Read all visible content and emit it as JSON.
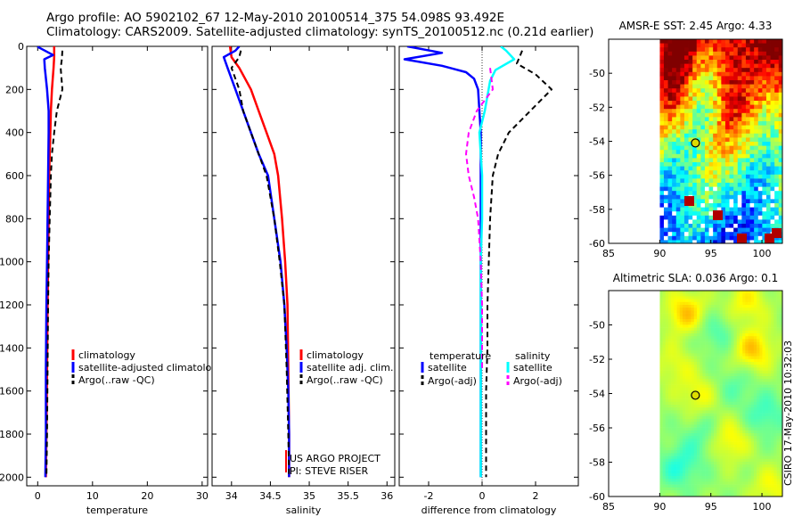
{
  "header": {
    "line1": "Argo profile: AO 5902102_67 12-May-2010 20100514_375 54.098S 93.492E",
    "line2": "Climatology: CARS2009. Satellite-adjusted climatology: synTS_20100512.nc (0.21d earlier)"
  },
  "credit": "CSIRO 17-May-2010 10:32:03",
  "colors": {
    "red": "#ff0000",
    "blue": "#0000ff",
    "black": "#000000",
    "cyan": "#00ffff",
    "magenta": "#ff00ff"
  },
  "chart_data": [
    {
      "id": "temperature",
      "type": "line",
      "title": "",
      "xlabel": "temperature",
      "ylabel": "",
      "xlim": [
        -2,
        31
      ],
      "ylim": [
        2040,
        0
      ],
      "xticks": [
        0,
        10,
        20,
        30
      ],
      "yticks": [
        0,
        200,
        400,
        600,
        800,
        1000,
        1200,
        1400,
        1600,
        1800,
        2000
      ],
      "legend": {
        "position": "lower-right",
        "entries": [
          "climatology",
          "satellite-adjusted climatology",
          "Argo(..raw -QC)"
        ]
      },
      "series": [
        {
          "name": "climatology",
          "color": "red",
          "dash": "solid",
          "width": 2.5,
          "x": [
            3.0,
            3.0,
            2.9,
            2.6,
            2.4,
            2.3,
            2.2,
            2.1,
            2.0,
            1.9,
            1.8,
            1.7,
            1.6,
            1.5
          ],
          "y": [
            0,
            50,
            100,
            200,
            300,
            400,
            500,
            600,
            800,
            1000,
            1200,
            1500,
            1800,
            2000
          ]
        },
        {
          "name": "satellite-adjusted climatology",
          "color": "blue",
          "dash": "solid",
          "width": 2.5,
          "x": [
            0.0,
            0.2,
            2.8,
            1.2,
            1.3,
            1.7,
            2.0,
            2.0,
            1.9,
            1.8,
            1.7,
            1.6,
            1.5,
            1.5,
            1.4
          ],
          "y": [
            0,
            5,
            40,
            60,
            100,
            200,
            300,
            400,
            600,
            800,
            1000,
            1200,
            1500,
            1800,
            2000
          ]
        },
        {
          "name": "Argo(..raw -QC)",
          "color": "black",
          "dash": "dash",
          "width": 2,
          "x": [
            4.5,
            4.4,
            4.2,
            4.5,
            3.5,
            3.0,
            2.6,
            2.4,
            2.2,
            2.0,
            1.9,
            1.8,
            1.7,
            1.6
          ],
          "y": [
            20,
            60,
            100,
            200,
            300,
            400,
            500,
            600,
            800,
            1000,
            1200,
            1500,
            1800,
            2000
          ]
        }
      ]
    },
    {
      "id": "salinity",
      "type": "line",
      "title": "",
      "xlabel": "salinity",
      "ylabel": "",
      "xlim": [
        33.75,
        36.1
      ],
      "ylim": [
        2040,
        0
      ],
      "xticks": [
        34,
        34.5,
        35,
        35.5,
        36
      ],
      "yticks": [
        0,
        200,
        400,
        600,
        800,
        1000,
        1200,
        1400,
        1600,
        1800,
        2000
      ],
      "legend": {
        "position": "lower-right",
        "entries": [
          "climatology",
          "satellite adj. clim.",
          "Argo(..raw -QC)"
        ]
      },
      "annotations": [
        "US ARGO PROJECT",
        "PI: STEVE RISER"
      ],
      "series": [
        {
          "name": "climatology",
          "color": "red",
          "dash": "solid",
          "width": 2.5,
          "x": [
            33.98,
            34.0,
            34.1,
            34.25,
            34.35,
            34.45,
            34.55,
            34.6,
            34.65,
            34.69,
            34.72,
            34.73,
            34.74,
            34.74
          ],
          "y": [
            0,
            50,
            100,
            200,
            300,
            400,
            500,
            600,
            800,
            1000,
            1200,
            1500,
            1800,
            2000
          ]
        },
        {
          "name": "satellite adj. clim.",
          "color": "blue",
          "dash": "solid",
          "width": 2.5,
          "x": [
            34.1,
            34.05,
            33.9,
            33.95,
            34.05,
            34.15,
            34.25,
            34.35,
            34.47,
            34.55,
            34.63,
            34.68,
            34.71,
            34.73,
            34.74,
            34.74
          ],
          "y": [
            0,
            20,
            50,
            100,
            200,
            300,
            400,
            500,
            600,
            800,
            1000,
            1200,
            1400,
            1600,
            1800,
            2000
          ]
        },
        {
          "name": "Argo(..raw -QC)",
          "color": "black",
          "dash": "dash",
          "width": 2,
          "x": [
            34.12,
            34.1,
            34.0,
            34.1,
            34.15,
            34.25,
            34.35,
            34.45,
            34.55,
            34.62,
            34.68,
            34.71,
            34.73,
            34.74
          ],
          "y": [
            20,
            50,
            100,
            200,
            300,
            400,
            500,
            600,
            800,
            1000,
            1200,
            1500,
            1800,
            2000
          ]
        }
      ]
    },
    {
      "id": "difference",
      "type": "line",
      "title": "",
      "xlabel": "difference from climatology",
      "ylabel": "",
      "xlim": [
        -3.1,
        3.6
      ],
      "ylim": [
        2040,
        0
      ],
      "xticks": [
        -2,
        0,
        2
      ],
      "yticks": [
        0,
        200,
        400,
        600,
        800,
        1000,
        1200,
        1400,
        1600,
        1800,
        2000
      ],
      "zero_line": true,
      "legend": {
        "position": "lower-center",
        "groups": [
          {
            "title": "temperature",
            "entries": [
              "satellite",
              "Argo(-adj)"
            ]
          },
          {
            "title": "salinity",
            "entries": [
              "satellite",
              "Argo(-adj)"
            ]
          }
        ]
      },
      "series": [
        {
          "name": "temperature satellite",
          "color": "blue",
          "dash": "solid",
          "width": 2.5,
          "x": [
            -2.8,
            -1.5,
            -2.9,
            -1.5,
            -0.6,
            -0.3,
            -0.15,
            -0.1,
            -0.05,
            -0.05,
            -0.05,
            -0.05,
            -0.05,
            -0.05,
            -0.05,
            -0.05
          ],
          "y": [
            0,
            30,
            60,
            90,
            120,
            150,
            200,
            300,
            400,
            600,
            800,
            1000,
            1200,
            1500,
            1800,
            2000
          ]
        },
        {
          "name": "temperature Argo(-adj)",
          "color": "black",
          "dash": "dash",
          "width": 2,
          "x": [
            1.5,
            1.3,
            2.0,
            2.6,
            1.8,
            1.0,
            0.6,
            0.4,
            0.3,
            0.25,
            0.2,
            0.2,
            0.15,
            0.15,
            0.15
          ],
          "y": [
            20,
            80,
            130,
            200,
            300,
            400,
            500,
            600,
            800,
            1000,
            1200,
            1400,
            1600,
            1800,
            2000
          ]
        },
        {
          "name": "salinity satellite",
          "color": "cyan",
          "dash": "solid",
          "width": 2.5,
          "x": [
            0.7,
            0.9,
            1.2,
            0.5,
            0.3,
            0.1,
            -0.1,
            -0.05,
            0.0,
            0.0,
            -0.05,
            -0.05,
            -0.05,
            -0.05
          ],
          "y": [
            0,
            20,
            60,
            110,
            160,
            300,
            400,
            500,
            600,
            800,
            1000,
            1200,
            1500,
            2000
          ]
        },
        {
          "name": "salinity Argo(-adj)",
          "color": "magenta",
          "dash": "dash",
          "width": 2,
          "x": [
            0.3,
            0.4,
            -0.2,
            -0.5,
            -0.6,
            -0.5,
            -0.3,
            -0.15,
            -0.05,
            0.0,
            0.0
          ],
          "y": [
            100,
            200,
            300,
            400,
            500,
            600,
            700,
            800,
            1000,
            1200,
            1500
          ]
        }
      ]
    },
    {
      "id": "amsr-sst",
      "type": "heatmap",
      "title": "AMSR-E SST: 2.45 Argo: 4.33",
      "xlim": [
        85,
        102
      ],
      "ylim": [
        -60,
        -48
      ],
      "xticks": [
        85,
        90,
        95,
        100
      ],
      "yticks": [
        -50,
        -52,
        -54,
        -56,
        -58,
        -60
      ],
      "data_start_lon": 90,
      "argo_position": {
        "lon": 93.49,
        "lat": -54.1
      }
    },
    {
      "id": "altimetric-sla",
      "type": "heatmap",
      "title": "Altimetric SLA: 0.036 Argo: 0.1",
      "xlim": [
        85,
        102
      ],
      "ylim": [
        -60,
        -48
      ],
      "xticks": [
        85,
        90,
        95,
        100
      ],
      "yticks": [
        -50,
        -52,
        -54,
        -56,
        -58,
        -60
      ],
      "data_start_lon": 90,
      "argo_position": {
        "lon": 93.49,
        "lat": -54.1
      }
    }
  ]
}
